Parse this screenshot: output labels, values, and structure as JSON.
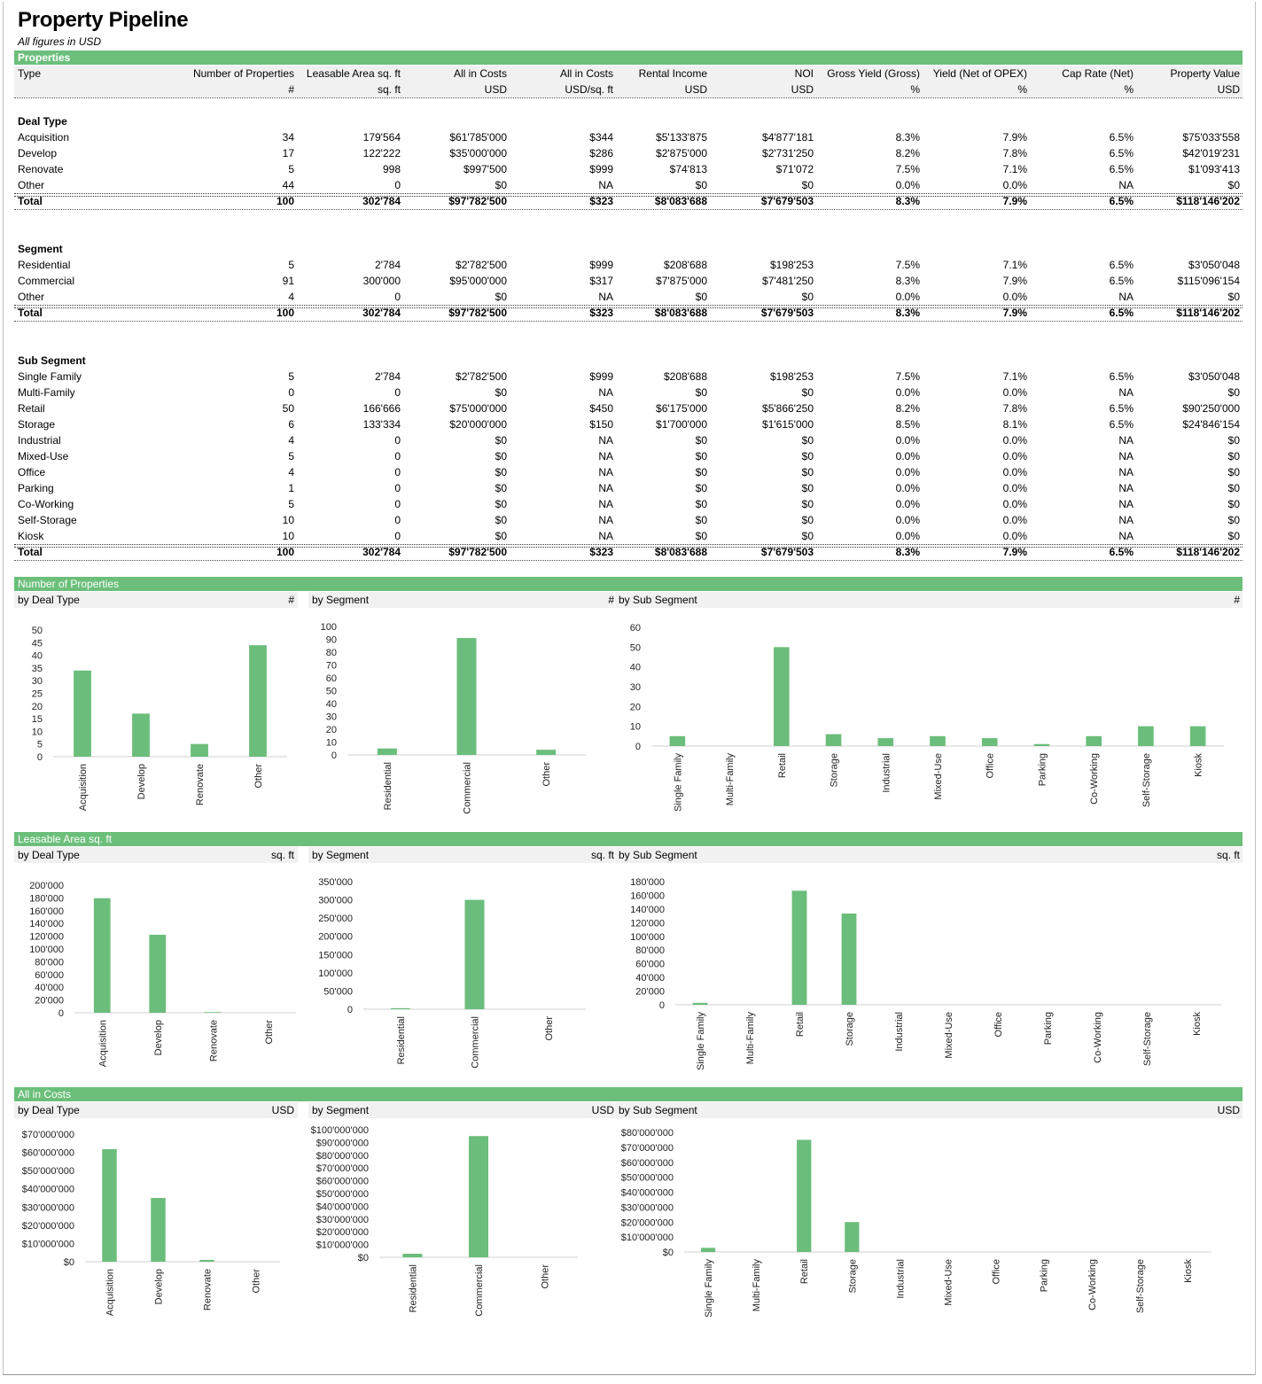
{
  "page": {
    "title": "Property Pipeline",
    "subtitle": "All figures in USD"
  },
  "properties": {
    "band_title": "Properties",
    "columns": [
      {
        "label": "Type",
        "unit": ""
      },
      {
        "label": "Number of Properties",
        "unit": "#"
      },
      {
        "label": "Leasable Area sq. ft",
        "unit": "sq. ft"
      },
      {
        "label": "All in Costs",
        "unit": "USD"
      },
      {
        "label": "All in Costs",
        "unit": "USD/sq. ft"
      },
      {
        "label": "Rental Income",
        "unit": "USD"
      },
      {
        "label": "NOI",
        "unit": "USD"
      },
      {
        "label": "Gross Yield (Gross)",
        "unit": "%"
      },
      {
        "label": "Yield (Net of OPEX)",
        "unit": "%"
      },
      {
        "label": "Cap Rate (Net)",
        "unit": "%"
      },
      {
        "label": "Property Value",
        "unit": "USD"
      }
    ],
    "sections": [
      {
        "heading": "Deal Type",
        "rows": [
          [
            "Acquisition",
            "34",
            "179'564",
            "$61'785'000",
            "$344",
            "$5'133'875",
            "$4'877'181",
            "8.3%",
            "7.9%",
            "6.5%",
            "$75'033'558"
          ],
          [
            "Develop",
            "17",
            "122'222",
            "$35'000'000",
            "$286",
            "$2'875'000",
            "$2'731'250",
            "8.2%",
            "7.8%",
            "6.5%",
            "$42'019'231"
          ],
          [
            "Renovate",
            "5",
            "998",
            "$997'500",
            "$999",
            "$74'813",
            "$71'072",
            "7.5%",
            "7.1%",
            "6.5%",
            "$1'093'413"
          ],
          [
            "Other",
            "44",
            "0",
            "$0",
            "NA",
            "$0",
            "$0",
            "0.0%",
            "0.0%",
            "NA",
            "$0"
          ]
        ],
        "total": [
          "Total",
          "100",
          "302'784",
          "$97'782'500",
          "$323",
          "$8'083'688",
          "$7'679'503",
          "8.3%",
          "7.9%",
          "6.5%",
          "$118'146'202"
        ]
      },
      {
        "heading": "Segment",
        "rows": [
          [
            "Residential",
            "5",
            "2'784",
            "$2'782'500",
            "$999",
            "$208'688",
            "$198'253",
            "7.5%",
            "7.1%",
            "6.5%",
            "$3'050'048"
          ],
          [
            "Commercial",
            "91",
            "300'000",
            "$95'000'000",
            "$317",
            "$7'875'000",
            "$7'481'250",
            "8.3%",
            "7.9%",
            "6.5%",
            "$115'096'154"
          ],
          [
            "Other",
            "4",
            "0",
            "$0",
            "NA",
            "$0",
            "$0",
            "0.0%",
            "0.0%",
            "NA",
            "$0"
          ]
        ],
        "total": [
          "Total",
          "100",
          "302'784",
          "$97'782'500",
          "$323",
          "$8'083'688",
          "$7'679'503",
          "8.3%",
          "7.9%",
          "6.5%",
          "$118'146'202"
        ]
      },
      {
        "heading": "Sub Segment",
        "rows": [
          [
            "Single Family",
            "5",
            "2'784",
            "$2'782'500",
            "$999",
            "$208'688",
            "$198'253",
            "7.5%",
            "7.1%",
            "6.5%",
            "$3'050'048"
          ],
          [
            "Multi-Family",
            "0",
            "0",
            "$0",
            "NA",
            "$0",
            "$0",
            "0.0%",
            "0.0%",
            "NA",
            "$0"
          ],
          [
            "Retail",
            "50",
            "166'666",
            "$75'000'000",
            "$450",
            "$6'175'000",
            "$5'866'250",
            "8.2%",
            "7.8%",
            "6.5%",
            "$90'250'000"
          ],
          [
            "Storage",
            "6",
            "133'334",
            "$20'000'000",
            "$150",
            "$1'700'000",
            "$1'615'000",
            "8.5%",
            "8.1%",
            "6.5%",
            "$24'846'154"
          ],
          [
            "Industrial",
            "4",
            "0",
            "$0",
            "NA",
            "$0",
            "$0",
            "0.0%",
            "0.0%",
            "NA",
            "$0"
          ],
          [
            "Mixed-Use",
            "5",
            "0",
            "$0",
            "NA",
            "$0",
            "$0",
            "0.0%",
            "0.0%",
            "NA",
            "$0"
          ],
          [
            "Office",
            "4",
            "0",
            "$0",
            "NA",
            "$0",
            "$0",
            "0.0%",
            "0.0%",
            "NA",
            "$0"
          ],
          [
            "Parking",
            "1",
            "0",
            "$0",
            "NA",
            "$0",
            "$0",
            "0.0%",
            "0.0%",
            "NA",
            "$0"
          ],
          [
            "Co-Working",
            "5",
            "0",
            "$0",
            "NA",
            "$0",
            "$0",
            "0.0%",
            "0.0%",
            "NA",
            "$0"
          ],
          [
            "Self-Storage",
            "10",
            "0",
            "$0",
            "NA",
            "$0",
            "$0",
            "0.0%",
            "0.0%",
            "NA",
            "$0"
          ],
          [
            "Kiosk",
            "10",
            "0",
            "$0",
            "NA",
            "$0",
            "$0",
            "0.0%",
            "0.0%",
            "NA",
            "$0"
          ]
        ],
        "total": [
          "Total",
          "100",
          "302'784",
          "$97'782'500",
          "$323",
          "$8'083'688",
          "$7'679'503",
          "8.3%",
          "7.9%",
          "6.5%",
          "$118'146'202"
        ]
      }
    ]
  },
  "chart_groups": [
    {
      "band_title": "Number of Properties",
      "panel_titles": [
        "by Deal Type",
        "by Segment",
        "by Sub Segment"
      ],
      "unit": "#"
    },
    {
      "band_title": "Leasable Area sq. ft",
      "panel_titles": [
        "by Deal Type",
        "by Segment",
        "by Sub Segment"
      ],
      "unit": "sq. ft"
    },
    {
      "band_title": "All in Costs",
      "panel_titles": [
        "by Deal Type",
        "by Segment",
        "by Sub Segment"
      ],
      "unit": "USD"
    }
  ],
  "chart_data": [
    {
      "type": "bar",
      "title": "",
      "categories": [
        "Acquisition",
        "Develop",
        "Renovate",
        "Other"
      ],
      "values": [
        34,
        17,
        5,
        44
      ],
      "ylim": [
        0,
        50
      ],
      "yticks": [
        "0",
        "5",
        "10",
        "15",
        "20",
        "25",
        "30",
        "35",
        "40",
        "45",
        "50"
      ],
      "color": "#6bbd7b"
    },
    {
      "type": "bar",
      "title": "",
      "categories": [
        "Residential",
        "Commercial",
        "Other"
      ],
      "values": [
        5,
        91,
        4
      ],
      "ylim": [
        0,
        100
      ],
      "yticks": [
        "0",
        "10",
        "20",
        "30",
        "40",
        "50",
        "60",
        "70",
        "80",
        "90",
        "100"
      ],
      "color": "#6bbd7b"
    },
    {
      "type": "bar",
      "title": "",
      "categories": [
        "Single Family",
        "Multi-Family",
        "Retail",
        "Storage",
        "Industrial",
        "Mixed-Use",
        "Office",
        "Parking",
        "Co-Working",
        "Self-Storage",
        "Kiosk"
      ],
      "values": [
        5,
        0,
        50,
        6,
        4,
        5,
        4,
        1,
        5,
        10,
        10
      ],
      "ylim": [
        0,
        60
      ],
      "yticks": [
        "0",
        "10",
        "20",
        "30",
        "40",
        "50",
        "60"
      ],
      "color": "#6bbd7b"
    },
    {
      "type": "bar",
      "title": "",
      "categories": [
        "Acquisition",
        "Develop",
        "Renovate",
        "Other"
      ],
      "values": [
        179564,
        122222,
        998,
        0
      ],
      "ylim": [
        0,
        200000
      ],
      "yticks": [
        "0",
        "20'000",
        "40'000",
        "60'000",
        "80'000",
        "100'000",
        "120'000",
        "140'000",
        "160'000",
        "180'000",
        "200'000"
      ],
      "color": "#6bbd7b"
    },
    {
      "type": "bar",
      "title": "",
      "categories": [
        "Residential",
        "Commercial",
        "Other"
      ],
      "values": [
        2784,
        300000,
        0
      ],
      "ylim": [
        0,
        350000
      ],
      "yticks": [
        "0",
        "50'000",
        "100'000",
        "150'000",
        "200'000",
        "250'000",
        "300'000",
        "350'000"
      ],
      "color": "#6bbd7b"
    },
    {
      "type": "bar",
      "title": "",
      "categories": [
        "Single Family",
        "Multi-Family",
        "Retail",
        "Storage",
        "Industrial",
        "Mixed-Use",
        "Office",
        "Parking",
        "Co-Working",
        "Self-Storage",
        "Kiosk"
      ],
      "values": [
        2784,
        0,
        166666,
        133334,
        0,
        0,
        0,
        0,
        0,
        0,
        0
      ],
      "ylim": [
        0,
        180000
      ],
      "yticks": [
        "0",
        "20'000",
        "40'000",
        "60'000",
        "80'000",
        "100'000",
        "120'000",
        "140'000",
        "160'000",
        "180'000"
      ],
      "color": "#6bbd7b"
    },
    {
      "type": "bar",
      "title": "",
      "categories": [
        "Acquisition",
        "Develop",
        "Renovate",
        "Other"
      ],
      "values": [
        61785000,
        35000000,
        997500,
        0
      ],
      "ylim": [
        0,
        70000000
      ],
      "yticks": [
        "$0",
        "$10'000'000",
        "$20'000'000",
        "$30'000'000",
        "$40'000'000",
        "$50'000'000",
        "$60'000'000",
        "$70'000'000"
      ],
      "color": "#6bbd7b"
    },
    {
      "type": "bar",
      "title": "",
      "categories": [
        "Residential",
        "Commercial",
        "Other"
      ],
      "values": [
        2782500,
        95000000,
        0
      ],
      "ylim": [
        0,
        100000000
      ],
      "yticks": [
        "$0",
        "$10'000'000",
        "$20'000'000",
        "$30'000'000",
        "$40'000'000",
        "$50'000'000",
        "$60'000'000",
        "$70'000'000",
        "$80'000'000",
        "$90'000'000",
        "$100'000'000"
      ],
      "color": "#6bbd7b"
    },
    {
      "type": "bar",
      "title": "",
      "categories": [
        "Single Family",
        "Multi-Family",
        "Retail",
        "Storage",
        "Industrial",
        "Mixed-Use",
        "Office",
        "Parking",
        "Co-Working",
        "Self-Storage",
        "Kiosk"
      ],
      "values": [
        2782500,
        0,
        75000000,
        20000000,
        0,
        0,
        0,
        0,
        0,
        0,
        0
      ],
      "ylim": [
        0,
        80000000
      ],
      "yticks": [
        "$0",
        "$10'000'000",
        "$20'000'000",
        "$30'000'000",
        "$40'000'000",
        "$50'000'000",
        "$60'000'000",
        "$70'000'000",
        "$80'000'000"
      ],
      "color": "#6bbd7b"
    }
  ]
}
